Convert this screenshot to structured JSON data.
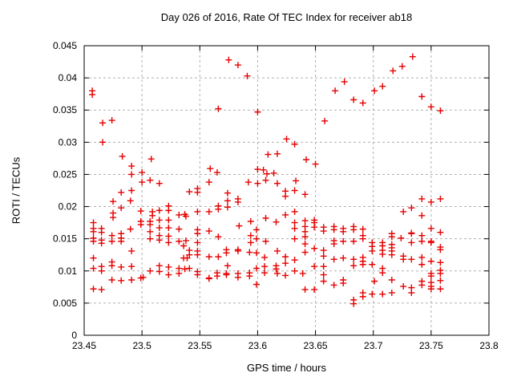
{
  "chart_data": {
    "type": "scatter",
    "title": "Day 026 of 2016, Rate Of TEC Index for receiver ab18",
    "xlabel": "GPS time / hours",
    "ylabel": "ROTI / TECUs",
    "xlim": [
      23.45,
      23.8
    ],
    "ylim": [
      0,
      0.045
    ],
    "xticks": [
      23.45,
      23.5,
      23.55,
      23.6,
      23.65,
      23.7,
      23.75,
      23.8
    ],
    "xtick_labels": [
      "23.45",
      "23.5",
      "23.55",
      "23.6",
      "23.65",
      "23.7",
      "23.75",
      "23.8"
    ],
    "yticks": [
      0,
      0.005,
      0.01,
      0.015,
      0.02,
      0.025,
      0.03,
      0.035,
      0.04,
      0.045
    ],
    "ytick_labels": [
      "0",
      "0.005",
      "0.01",
      "0.015",
      "0.02",
      "0.025",
      "0.03",
      "0.035",
      "0.04",
      "0.045"
    ],
    "grid": "dashed",
    "legend": "none",
    "marker": {
      "shape": "plus",
      "color": "#e60000",
      "size": 8
    },
    "grid_color": "#b0b0b0",
    "frame_color": "#000000",
    "background_color": "#ffffff",
    "series_name": "ROTI",
    "points": [
      [
        23.457,
        0.038
      ],
      [
        23.457,
        0.0374
      ],
      [
        23.466,
        0.033
      ],
      [
        23.474,
        0.0334
      ],
      [
        23.466,
        0.03
      ],
      [
        23.483,
        0.0278
      ],
      [
        23.491,
        0.0263
      ],
      [
        23.508,
        0.0274
      ],
      [
        23.491,
        0.025
      ],
      [
        23.5,
        0.0253
      ],
      [
        23.5,
        0.0238
      ],
      [
        23.507,
        0.0241
      ],
      [
        23.515,
        0.0236
      ],
      [
        23.458,
        0.0175
      ],
      [
        23.458,
        0.0166
      ],
      [
        23.458,
        0.0161
      ],
      [
        23.465,
        0.0166
      ],
      [
        23.465,
        0.016
      ],
      [
        23.458,
        0.0151
      ],
      [
        23.458,
        0.0146
      ],
      [
        23.465,
        0.0148
      ],
      [
        23.465,
        0.0143
      ],
      [
        23.474,
        0.0155
      ],
      [
        23.474,
        0.0146
      ],
      [
        23.482,
        0.0158
      ],
      [
        23.482,
        0.0151
      ],
      [
        23.482,
        0.0146
      ],
      [
        23.49,
        0.0165
      ],
      [
        23.482,
        0.0222
      ],
      [
        23.491,
        0.0225
      ],
      [
        23.475,
        0.0208
      ],
      [
        23.49,
        0.0209
      ],
      [
        23.482,
        0.0198
      ],
      [
        23.475,
        0.019
      ],
      [
        23.475,
        0.0183
      ],
      [
        23.458,
        0.012
      ],
      [
        23.474,
        0.0114
      ],
      [
        23.474,
        0.0108
      ],
      [
        23.465,
        0.0107
      ],
      [
        23.458,
        0.0104
      ],
      [
        23.465,
        0.01
      ],
      [
        23.482,
        0.0106
      ],
      [
        23.491,
        0.0107
      ],
      [
        23.491,
        0.0131
      ],
      [
        23.474,
        0.0086
      ],
      [
        23.482,
        0.0085
      ],
      [
        23.491,
        0.0086
      ],
      [
        23.499,
        0.0089
      ],
      [
        23.501,
        0.009
      ],
      [
        23.458,
        0.0072
      ],
      [
        23.465,
        0.0071
      ],
      [
        23.523,
        0.0201
      ],
      [
        23.499,
        0.0193
      ],
      [
        23.509,
        0.0192
      ],
      [
        23.515,
        0.0194
      ],
      [
        23.509,
        0.0186
      ],
      [
        23.523,
        0.0194
      ],
      [
        23.532,
        0.0187
      ],
      [
        23.538,
        0.0185
      ],
      [
        23.499,
        0.0177
      ],
      [
        23.507,
        0.0177
      ],
      [
        23.515,
        0.0179
      ],
      [
        23.523,
        0.0179
      ],
      [
        23.499,
        0.0172
      ],
      [
        23.507,
        0.0172
      ],
      [
        23.515,
        0.0167
      ],
      [
        23.523,
        0.0167
      ],
      [
        23.532,
        0.0165
      ],
      [
        23.507,
        0.0161
      ],
      [
        23.515,
        0.0155
      ],
      [
        23.523,
        0.0154
      ],
      [
        23.507,
        0.015
      ],
      [
        23.515,
        0.0148
      ],
      [
        23.523,
        0.0144
      ],
      [
        23.532,
        0.0146
      ],
      [
        23.538,
        0.0147
      ],
      [
        23.507,
        0.01
      ],
      [
        23.515,
        0.0099
      ],
      [
        23.523,
        0.0094
      ],
      [
        23.532,
        0.0096
      ],
      [
        23.515,
        0.0108
      ],
      [
        23.523,
        0.0106
      ],
      [
        23.532,
        0.0104
      ],
      [
        23.537,
        0.0188
      ],
      [
        23.536,
        0.0139
      ],
      [
        23.536,
        0.012
      ],
      [
        23.539,
        0.012
      ],
      [
        23.537,
        0.0103
      ],
      [
        23.541,
        0.0223
      ],
      [
        23.548,
        0.0228
      ],
      [
        23.548,
        0.0222
      ],
      [
        23.574,
        0.0221
      ],
      [
        23.566,
        0.0201
      ],
      [
        23.566,
        0.0196
      ],
      [
        23.574,
        0.0209
      ],
      [
        23.574,
        0.0199
      ],
      [
        23.583,
        0.0212
      ],
      [
        23.583,
        0.0207
      ],
      [
        23.548,
        0.0192
      ],
      [
        23.558,
        0.0192
      ],
      [
        23.624,
        0.0187
      ],
      [
        23.607,
        0.0182
      ],
      [
        23.616,
        0.0176
      ],
      [
        23.594,
        0.0177
      ],
      [
        23.584,
        0.017
      ],
      [
        23.548,
        0.0164
      ],
      [
        23.548,
        0.0158
      ],
      [
        23.558,
        0.0162
      ],
      [
        23.599,
        0.0164
      ],
      [
        23.566,
        0.0153
      ],
      [
        23.594,
        0.0155
      ],
      [
        23.594,
        0.0144
      ],
      [
        23.599,
        0.015
      ],
      [
        23.607,
        0.0146
      ],
      [
        23.548,
        0.0144
      ],
      [
        23.573,
        0.0133
      ],
      [
        23.573,
        0.0128
      ],
      [
        23.583,
        0.0133
      ],
      [
        23.583,
        0.0131
      ],
      [
        23.541,
        0.0132
      ],
      [
        23.541,
        0.0125
      ],
      [
        23.548,
        0.0131
      ],
      [
        23.548,
        0.0125
      ],
      [
        23.558,
        0.0122
      ],
      [
        23.566,
        0.0122
      ],
      [
        23.593,
        0.0129
      ],
      [
        23.599,
        0.0128
      ],
      [
        23.617,
        0.0131
      ],
      [
        23.606,
        0.0121
      ],
      [
        23.624,
        0.0122
      ],
      [
        23.624,
        0.0112
      ],
      [
        23.574,
        0.0108
      ],
      [
        23.541,
        0.0104
      ],
      [
        23.599,
        0.0104
      ],
      [
        23.606,
        0.0107
      ],
      [
        23.606,
        0.0097
      ],
      [
        23.616,
        0.0108
      ],
      [
        23.616,
        0.0103
      ],
      [
        23.548,
        0.0099
      ],
      [
        23.548,
        0.0094
      ],
      [
        23.565,
        0.0097
      ],
      [
        23.565,
        0.0092
      ],
      [
        23.573,
        0.0096
      ],
      [
        23.573,
        0.0094
      ],
      [
        23.558,
        0.0089
      ],
      [
        23.558,
        0.0088
      ],
      [
        23.583,
        0.0096
      ],
      [
        23.583,
        0.009
      ],
      [
        23.593,
        0.0097
      ],
      [
        23.593,
        0.0092
      ],
      [
        23.624,
        0.0093
      ],
      [
        23.617,
        0.0096
      ],
      [
        23.599,
        0.0079
      ],
      [
        23.624,
        0.0224
      ],
      [
        23.624,
        0.0216
      ],
      [
        23.575,
        0.0428
      ],
      [
        23.583,
        0.042
      ],
      [
        23.591,
        0.0403
      ],
      [
        23.566,
        0.0352
      ],
      [
        23.6,
        0.0347
      ],
      [
        23.625,
        0.0305
      ],
      [
        23.632,
        0.0297
      ],
      [
        23.609,
        0.0281
      ],
      [
        23.617,
        0.0282
      ],
      [
        23.6,
        0.0258
      ],
      [
        23.608,
        0.0251
      ],
      [
        23.614,
        0.0252
      ],
      [
        23.605,
        0.0257
      ],
      [
        23.6,
        0.0236
      ],
      [
        23.592,
        0.0238
      ],
      [
        23.559,
        0.0259
      ],
      [
        23.558,
        0.0238
      ],
      [
        23.565,
        0.0253
      ],
      [
        23.607,
        0.0241
      ],
      [
        23.617,
        0.0236
      ],
      [
        23.633,
        0.024
      ],
      [
        23.734,
        0.0433
      ],
      [
        23.725,
        0.0418
      ],
      [
        23.717,
        0.0411
      ],
      [
        23.675,
        0.0394
      ],
      [
        23.708,
        0.0387
      ],
      [
        23.667,
        0.038
      ],
      [
        23.701,
        0.038
      ],
      [
        23.683,
        0.0366
      ],
      [
        23.691,
        0.0361
      ],
      [
        23.742,
        0.0371
      ],
      [
        23.75,
        0.0355
      ],
      [
        23.758,
        0.0349
      ],
      [
        23.658,
        0.0333
      ],
      [
        23.642,
        0.0273
      ],
      [
        23.65,
        0.0266
      ],
      [
        23.632,
        0.0225
      ],
      [
        23.641,
        0.0219
      ],
      [
        23.632,
        0.0192
      ],
      [
        23.632,
        0.0175
      ],
      [
        23.632,
        0.0166
      ],
      [
        23.641,
        0.0178
      ],
      [
        23.641,
        0.0169
      ],
      [
        23.641,
        0.0161
      ],
      [
        23.641,
        0.0153
      ],
      [
        23.649,
        0.0179
      ],
      [
        23.649,
        0.0175
      ],
      [
        23.649,
        0.0168
      ],
      [
        23.632,
        0.015
      ],
      [
        23.641,
        0.0142
      ],
      [
        23.641,
        0.0129
      ],
      [
        23.649,
        0.0135
      ],
      [
        23.657,
        0.0168
      ],
      [
        23.657,
        0.0162
      ],
      [
        23.666,
        0.0169
      ],
      [
        23.666,
        0.0164
      ],
      [
        23.666,
        0.0147
      ],
      [
        23.666,
        0.0142
      ],
      [
        23.674,
        0.0166
      ],
      [
        23.674,
        0.0161
      ],
      [
        23.674,
        0.0146
      ],
      [
        23.683,
        0.0169
      ],
      [
        23.683,
        0.0164
      ],
      [
        23.683,
        0.0146
      ],
      [
        23.691,
        0.0165
      ],
      [
        23.691,
        0.0155
      ],
      [
        23.691,
        0.015
      ],
      [
        23.657,
        0.0132
      ],
      [
        23.657,
        0.0123
      ],
      [
        23.666,
        0.0118
      ],
      [
        23.674,
        0.012
      ],
      [
        23.683,
        0.0118
      ],
      [
        23.683,
        0.0108
      ],
      [
        23.691,
        0.0121
      ],
      [
        23.691,
        0.0115
      ],
      [
        23.691,
        0.011
      ],
      [
        23.632,
        0.0117
      ],
      [
        23.632,
        0.01
      ],
      [
        23.639,
        0.0096
      ],
      [
        23.649,
        0.0107
      ],
      [
        23.657,
        0.0107
      ],
      [
        23.657,
        0.0094
      ],
      [
        23.657,
        0.0084
      ],
      [
        23.674,
        0.0086
      ],
      [
        23.674,
        0.0081
      ],
      [
        23.666,
        0.0078
      ],
      [
        23.641,
        0.0071
      ],
      [
        23.649,
        0.0071
      ],
      [
        23.699,
        0.0144
      ],
      [
        23.699,
        0.0138
      ],
      [
        23.699,
        0.0131
      ],
      [
        23.699,
        0.011
      ],
      [
        23.708,
        0.0144
      ],
      [
        23.708,
        0.0139
      ],
      [
        23.708,
        0.0132
      ],
      [
        23.708,
        0.0126
      ],
      [
        23.716,
        0.0158
      ],
      [
        23.716,
        0.0153
      ],
      [
        23.716,
        0.0141
      ],
      [
        23.716,
        0.0136
      ],
      [
        23.716,
        0.0131
      ],
      [
        23.716,
        0.0125
      ],
      [
        23.708,
        0.0104
      ],
      [
        23.708,
        0.0097
      ],
      [
        23.701,
        0.0084
      ],
      [
        23.716,
        0.0086
      ],
      [
        23.691,
        0.0066
      ],
      [
        23.691,
        0.006
      ],
      [
        23.683,
        0.0055
      ],
      [
        23.683,
        0.0049
      ],
      [
        23.699,
        0.0064
      ],
      [
        23.708,
        0.0064
      ],
      [
        23.716,
        0.0066
      ],
      [
        23.742,
        0.0212
      ],
      [
        23.75,
        0.0207
      ],
      [
        23.758,
        0.0212
      ],
      [
        23.733,
        0.0198
      ],
      [
        23.726,
        0.0192
      ],
      [
        23.742,
        0.0186
      ],
      [
        23.75,
        0.0166
      ],
      [
        23.758,
        0.016
      ],
      [
        23.733,
        0.0158
      ],
      [
        23.733,
        0.0159
      ],
      [
        23.724,
        0.0151
      ],
      [
        23.742,
        0.0155
      ],
      [
        23.742,
        0.0146
      ],
      [
        23.733,
        0.0144
      ],
      [
        23.75,
        0.0144
      ],
      [
        23.75,
        0.0146
      ],
      [
        23.758,
        0.0137
      ],
      [
        23.758,
        0.0133
      ],
      [
        23.726,
        0.0123
      ],
      [
        23.726,
        0.0118
      ],
      [
        23.733,
        0.0118
      ],
      [
        23.742,
        0.0121
      ],
      [
        23.742,
        0.011
      ],
      [
        23.75,
        0.0115
      ],
      [
        23.758,
        0.0113
      ],
      [
        23.758,
        0.0101
      ],
      [
        23.758,
        0.0096
      ],
      [
        23.75,
        0.0096
      ],
      [
        23.75,
        0.0092
      ],
      [
        23.758,
        0.0085
      ],
      [
        23.758,
        0.0072
      ],
      [
        23.75,
        0.0082
      ],
      [
        23.75,
        0.0076
      ],
      [
        23.75,
        0.0072
      ],
      [
        23.742,
        0.0084
      ],
      [
        23.742,
        0.0078
      ],
      [
        23.726,
        0.0076
      ],
      [
        23.733,
        0.0074
      ],
      [
        23.733,
        0.0066
      ]
    ]
  }
}
